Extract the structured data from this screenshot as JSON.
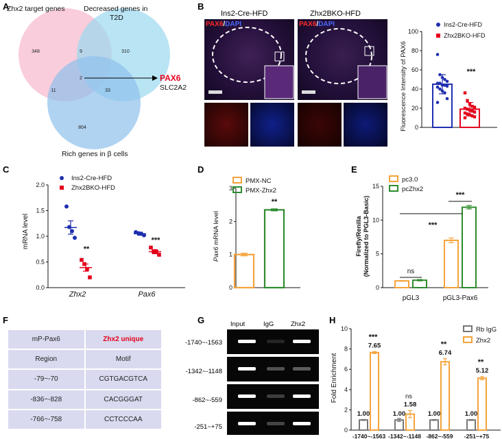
{
  "panel_labels": [
    "A",
    "B",
    "C",
    "D",
    "E",
    "F",
    "G",
    "H"
  ],
  "venn": {
    "set_a_label": "Zhx2 target genes",
    "set_b_label": "Decreased genes in\nT2D",
    "set_c_label": "Rich genes in β cells",
    "counts": {
      "a_only": "348",
      "ab": "9",
      "b_only": "310",
      "abc": "2",
      "ac": "11",
      "bc": "33",
      "c_only": "804"
    },
    "result_gene1": "PAX6",
    "result_gene2": "SLC2A2",
    "colors": {
      "a": "#f6b8cc",
      "b": "#9bd8f0",
      "c": "#8ec1ec",
      "arrow": "#000000",
      "gene1": "#e3001b"
    }
  },
  "panel_b": {
    "group1_label": "Ins2-Cre-HFD",
    "group2_label": "Zhx2BKO-HFD",
    "stain_pax6": "PAX6",
    "stain_sep": "/",
    "stain_dapi": "DAPI",
    "chart_data": {
      "type": "bar",
      "categories": [
        "Ins2-Cre-HFD",
        "Zhx2BKO-HFD"
      ],
      "values": [
        45,
        19
      ],
      "errors": [
        10,
        7
      ],
      "points": [
        [
          76,
          55,
          52,
          50,
          48,
          46,
          46,
          44,
          44,
          43,
          42,
          40,
          38,
          36,
          30,
          26
        ],
        [
          36,
          28,
          24,
          22,
          21,
          20,
          19,
          18,
          17,
          16,
          15,
          14,
          13,
          12,
          11,
          10
        ]
      ],
      "significance": "***",
      "ylabel": "Fluorescence Intensity of PAX6",
      "ylim": [
        0,
        100
      ],
      "yticks": [
        "0",
        "20",
        "40",
        "60",
        "80",
        "100"
      ],
      "legend": [
        "Ins2-Cre-HFD",
        "Zhx2BKO-HFD"
      ],
      "colors": [
        "#1f2fb0",
        "#e3001b"
      ]
    }
  },
  "panel_c": {
    "chart_data": {
      "type": "scatter",
      "categories": [
        "Zhx2",
        "Pax6"
      ],
      "series": [
        {
          "name": "Ins2-Cre-HFD",
          "means": [
            1.17,
            1.05
          ],
          "errors": [
            0.13,
            0.03
          ],
          "points": [
            [
              1.58,
              1.18,
              1.1,
              0.97
            ],
            [
              1.08,
              1.06,
              1.05,
              1.02
            ]
          ]
        },
        {
          "name": "Zhx2BKO-HFD",
          "means": [
            0.39,
            0.7
          ],
          "errors": [
            0.07,
            0.04
          ],
          "points": [
            [
              0.54,
              0.46,
              0.36,
              0.2
            ],
            [
              0.78,
              0.7,
              0.7,
              0.64
            ]
          ]
        }
      ],
      "significance": [
        "**",
        "***"
      ],
      "ylabel": "mRNA level",
      "ylim": [
        0,
        2.0
      ],
      "yticks": [
        "0.0",
        "0.5",
        "1.0",
        "1.5",
        "2.0"
      ],
      "colors": [
        "#1f2fb0",
        "#e3001b"
      ]
    }
  },
  "panel_d": {
    "chart_data": {
      "type": "bar",
      "categories": [
        "PMX-NC",
        "PMX-Zhx2"
      ],
      "values": [
        1.0,
        2.35
      ],
      "errors": [
        0.04,
        0.03
      ],
      "significance": "**",
      "ylabel_gene": "Pax6",
      "ylabel_rest": " mRNA level",
      "ylim": [
        0,
        3
      ],
      "yticks": [
        "0",
        "1",
        "2",
        "3"
      ],
      "legend": [
        "PMX-NC",
        "PMX-Zhx2"
      ],
      "colors": [
        "#f5a23a",
        "#2e8b2e"
      ]
    }
  },
  "panel_e": {
    "chart_data": {
      "type": "bar",
      "categories": [
        "pGL3",
        "pGL3-Pax6"
      ],
      "series": [
        {
          "name": "pc3.0",
          "values": [
            1.0,
            7.0
          ],
          "errors": [
            0.05,
            0.35
          ]
        },
        {
          "name": "pcZhx2",
          "values": [
            1.1,
            11.9
          ],
          "errors": [
            0.1,
            0.25
          ]
        }
      ],
      "significance": [
        "ns",
        "***",
        "***"
      ],
      "ylabel1": "Firefly/Renilla",
      "ylabel2": "(Normalized to PGL3-Basic)",
      "ylim": [
        0,
        15
      ],
      "yticks": [
        "0",
        "5",
        "10",
        "15"
      ],
      "colors": [
        "#f5a23a",
        "#2e8b2e"
      ]
    }
  },
  "panel_f": {
    "rows": [
      {
        "c1": "mP-Pax6",
        "c2": "Zhx2 unique"
      },
      {
        "c1": "Region",
        "c2": "Motif"
      },
      {
        "c1": "-79~-70",
        "c2": "CGTGACGTCA"
      },
      {
        "c1": "-836~-828",
        "c2": "CACGGGAT"
      },
      {
        "c1": "-766~-758",
        "c2": "CCTCCCAA"
      }
    ],
    "highlight_color": "#e3001b"
  },
  "panel_g": {
    "lanes": [
      "Input",
      "IgG",
      "Zhx2"
    ],
    "regions": [
      "-1740~-1563",
      "-1342~-1148",
      "-862~-559",
      "-251~+75"
    ]
  },
  "panel_h": {
    "chart_data": {
      "type": "bar",
      "categories": [
        "-1740~-1563",
        "-1342~-1148",
        "-862~-559",
        "-251~+75"
      ],
      "series": [
        {
          "name": "Rb IgG",
          "values": [
            1.0,
            1.0,
            1.0,
            1.0
          ],
          "errors": [
            0.05,
            0.15,
            0.05,
            0.05
          ]
        },
        {
          "name": "Zhx2",
          "values": [
            7.65,
            1.58,
            6.74,
            5.12
          ],
          "errors": [
            0.1,
            0.35,
            0.3,
            0.15
          ]
        }
      ],
      "igg_labels": [
        "1.00",
        "1.00",
        "1.00",
        "1.00"
      ],
      "zhx2_labels": [
        "7.65",
        "1.58",
        "6.74",
        "5.12"
      ],
      "significance": [
        "***",
        "ns",
        "**",
        "**"
      ],
      "ylabel": "Fold Enrichment",
      "ylim": [
        0,
        10
      ],
      "yticks": [
        "0",
        "2",
        "4",
        "6",
        "8",
        "10"
      ],
      "colors": [
        "#777777",
        "#f5a23a"
      ]
    }
  }
}
